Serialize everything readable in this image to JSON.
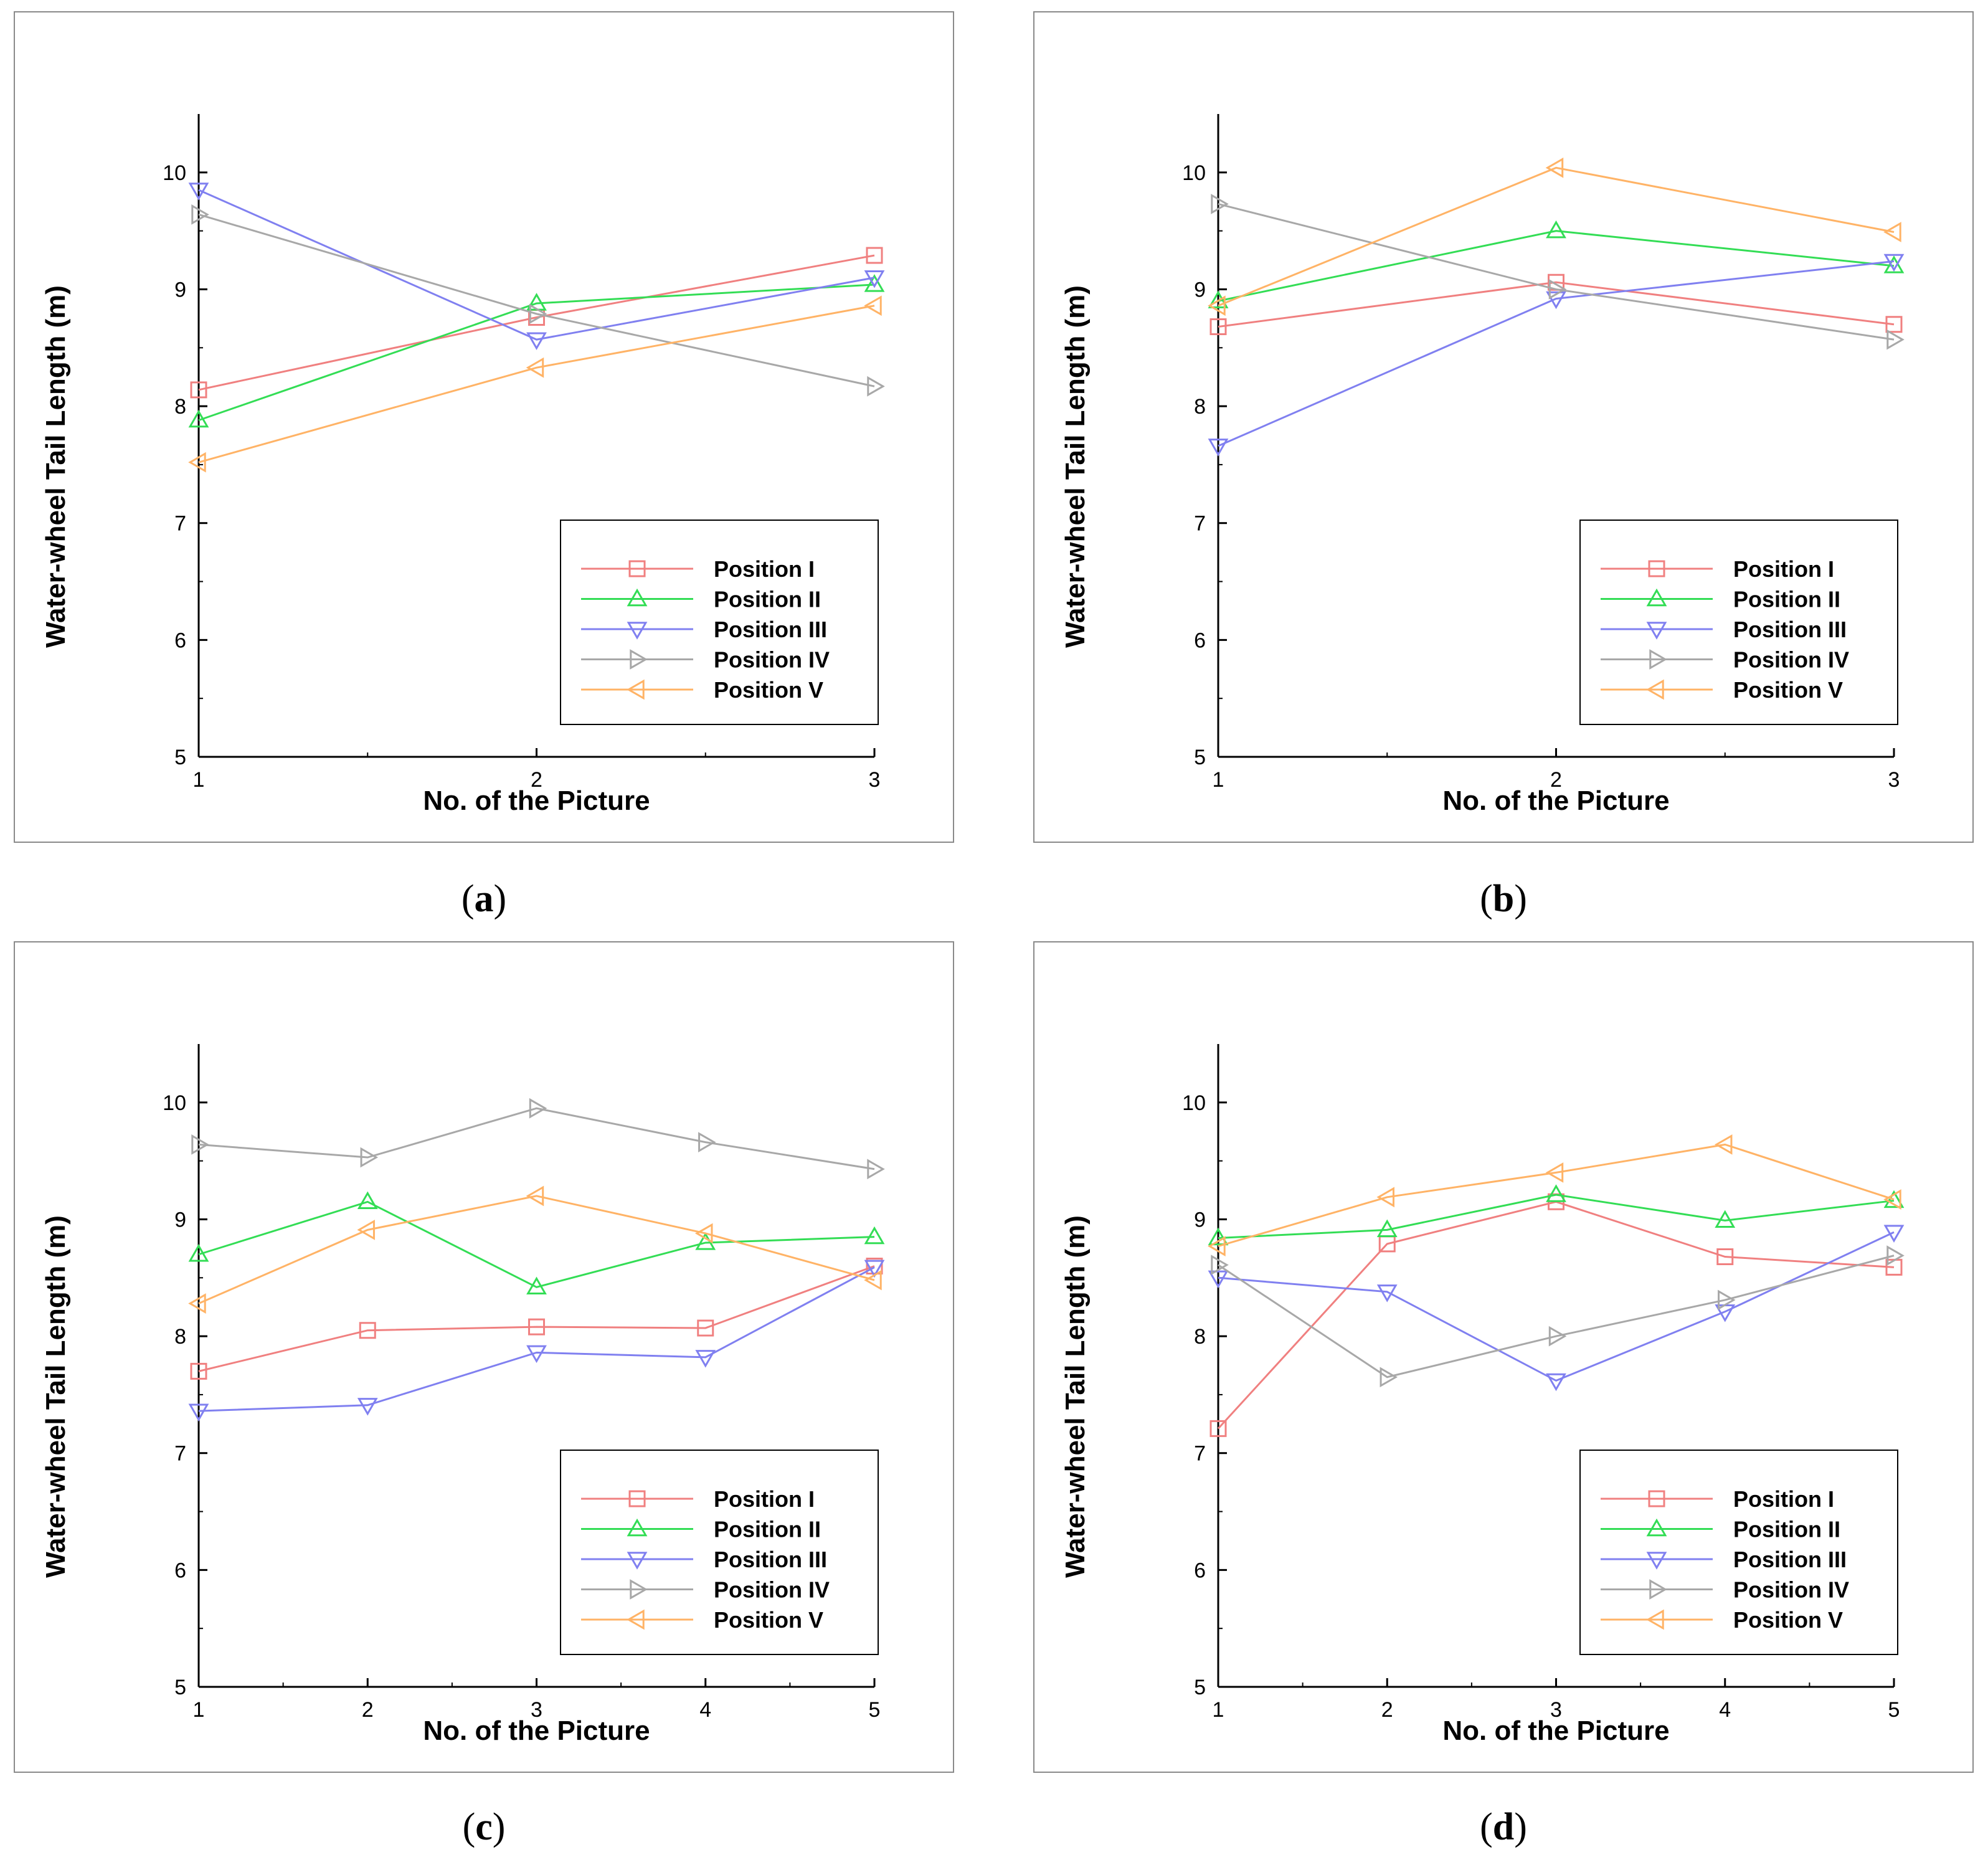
{
  "chart_data": [
    {
      "type": "line",
      "caption": "a",
      "xlabel": "No. of the Picture",
      "ylabel": "Water-wheel Tail Length (m)",
      "xlim": [
        1,
        3
      ],
      "ylim": [
        5,
        10.5
      ],
      "x_ticks": [
        "1",
        "2",
        "3"
      ],
      "y_ticks": [
        "5",
        "6",
        "7",
        "8",
        "9",
        "10"
      ],
      "legend_position": "lower-right",
      "grid": false,
      "x": [
        1,
        2,
        3
      ],
      "series": [
        {
          "name": "Position I",
          "marker": "square",
          "color": "#f08080",
          "values": [
            8.14,
            8.76,
            9.29
          ]
        },
        {
          "name": "Position II",
          "marker": "triangle-up",
          "color": "#33dd55",
          "values": [
            7.88,
            8.88,
            9.04
          ]
        },
        {
          "name": "Position III",
          "marker": "triangle-down",
          "color": "#8080f0",
          "values": [
            9.85,
            8.57,
            9.1
          ]
        },
        {
          "name": "Position IV",
          "marker": "triangle-right",
          "color": "#a8a8a8",
          "values": [
            9.64,
            8.79,
            8.17
          ]
        },
        {
          "name": "Position V",
          "marker": "triangle-left",
          "color": "#ffb366",
          "values": [
            7.52,
            8.33,
            8.86
          ]
        }
      ]
    },
    {
      "type": "line",
      "caption": "b",
      "xlabel": "No. of the Picture",
      "ylabel": "Water-wheel Tail Length (m)",
      "xlim": [
        1,
        3
      ],
      "ylim": [
        5,
        10.5
      ],
      "x_ticks": [
        "1",
        "2",
        "3"
      ],
      "y_ticks": [
        "5",
        "6",
        "7",
        "8",
        "9",
        "10"
      ],
      "legend_position": "lower-right",
      "grid": false,
      "x": [
        1,
        2,
        3
      ],
      "series": [
        {
          "name": "Position I",
          "marker": "square",
          "color": "#f08080",
          "values": [
            8.68,
            9.06,
            8.7
          ]
        },
        {
          "name": "Position II",
          "marker": "triangle-up",
          "color": "#33dd55",
          "values": [
            8.9,
            9.5,
            9.2
          ]
        },
        {
          "name": "Position III",
          "marker": "triangle-down",
          "color": "#8080f0",
          "values": [
            7.66,
            8.92,
            9.24
          ]
        },
        {
          "name": "Position IV",
          "marker": "triangle-right",
          "color": "#a8a8a8",
          "values": [
            9.73,
            9.0,
            8.57
          ]
        },
        {
          "name": "Position V",
          "marker": "triangle-left",
          "color": "#ffb366",
          "values": [
            8.86,
            10.04,
            9.49
          ]
        }
      ]
    },
    {
      "type": "line",
      "caption": "c",
      "xlabel": "No. of the Picture",
      "ylabel": "Water-wheel Tail Length (m)",
      "xlim": [
        1,
        5
      ],
      "ylim": [
        5,
        10.5
      ],
      "x_ticks": [
        "1",
        "2",
        "3",
        "4",
        "5"
      ],
      "y_ticks": [
        "5",
        "6",
        "7",
        "8",
        "9",
        "10"
      ],
      "legend_position": "lower-right",
      "grid": false,
      "x": [
        1,
        2,
        3,
        4,
        5
      ],
      "series": [
        {
          "name": "Position I",
          "marker": "square",
          "color": "#f08080",
          "values": [
            7.7,
            8.05,
            8.08,
            8.07,
            8.6
          ]
        },
        {
          "name": "Position II",
          "marker": "triangle-up",
          "color": "#33dd55",
          "values": [
            8.7,
            9.15,
            8.42,
            8.8,
            8.85
          ]
        },
        {
          "name": "Position III",
          "marker": "triangle-down",
          "color": "#8080f0",
          "values": [
            7.36,
            7.41,
            7.86,
            7.82,
            8.59
          ]
        },
        {
          "name": "Position IV",
          "marker": "triangle-right",
          "color": "#a8a8a8",
          "values": [
            9.64,
            9.53,
            9.95,
            9.66,
            9.43
          ]
        },
        {
          "name": "Position V",
          "marker": "triangle-left",
          "color": "#ffb366",
          "values": [
            8.28,
            8.91,
            9.2,
            8.88,
            8.48
          ]
        }
      ]
    },
    {
      "type": "line",
      "caption": "d",
      "xlabel": "No. of the Picture",
      "ylabel": "Water-wheel Tail Length (m)",
      "xlim": [
        1,
        5
      ],
      "ylim": [
        5,
        10.5
      ],
      "x_ticks": [
        "1",
        "2",
        "3",
        "4",
        "5"
      ],
      "y_ticks": [
        "5",
        "6",
        "7",
        "8",
        "9",
        "10"
      ],
      "legend_position": "lower-right",
      "grid": false,
      "x": [
        1,
        2,
        3,
        4,
        5
      ],
      "series": [
        {
          "name": "Position I",
          "marker": "square",
          "color": "#f08080",
          "values": [
            7.21,
            8.79,
            9.15,
            8.68,
            8.59
          ]
        },
        {
          "name": "Position II",
          "marker": "triangle-up",
          "color": "#33dd55",
          "values": [
            8.84,
            8.91,
            9.21,
            8.99,
            9.16
          ]
        },
        {
          "name": "Position III",
          "marker": "triangle-down",
          "color": "#8080f0",
          "values": [
            8.5,
            8.38,
            7.62,
            8.21,
            8.89
          ]
        },
        {
          "name": "Position IV",
          "marker": "triangle-right",
          "color": "#a8a8a8",
          "values": [
            8.61,
            7.65,
            8.0,
            8.31,
            8.69
          ]
        },
        {
          "name": "Position V",
          "marker": "triangle-left",
          "color": "#ffb366",
          "values": [
            8.77,
            9.19,
            9.4,
            9.64,
            9.17
          ]
        }
      ]
    }
  ]
}
